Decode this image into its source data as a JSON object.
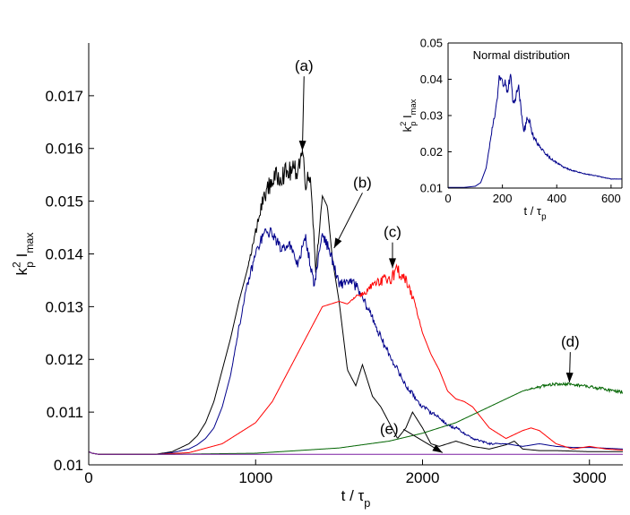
{
  "chart_data": [
    {
      "type": "line",
      "xlabel": "t / τ",
      "xlabel_sub": "p",
      "ylabel_base": "k",
      "ylabel_sup": "2",
      "ylabel_sub1": "p",
      "ylabel_main": "I",
      "ylabel_sub2": "max",
      "xlim": [
        0,
        3200
      ],
      "ylim": [
        0.01,
        0.018
      ],
      "x_ticks": [
        0,
        1000,
        2000,
        3000
      ],
      "x_tick_labels": [
        "0",
        "1000",
        "2000",
        "3000"
      ],
      "y_ticks": [
        0.01,
        0.011,
        0.012,
        0.013,
        0.014,
        0.015,
        0.016,
        0.017
      ],
      "y_tick_labels": [
        "0.01",
        "0.011",
        "0.012",
        "0.013",
        "0.014",
        "0.015",
        "0.016",
        "0.017"
      ],
      "grid": false,
      "series": [
        {
          "name": "(a)",
          "color": "#000000",
          "x": [
            0,
            20,
            60,
            200,
            400,
            500,
            600,
            650,
            700,
            750,
            800,
            850,
            900,
            950,
            1000,
            1050,
            1100,
            1150,
            1200,
            1250,
            1280,
            1300,
            1330,
            1360,
            1400,
            1430,
            1460,
            1500,
            1550,
            1600,
            1640,
            1700,
            1750,
            1800,
            1850,
            1900,
            1940,
            2000,
            2050,
            2100,
            2200,
            2300,
            2400,
            2500,
            2550,
            2600,
            2700,
            2800,
            3000,
            3200
          ],
          "values": [
            0.01025,
            0.01022,
            0.0102,
            0.0102,
            0.0102,
            0.01025,
            0.0104,
            0.01055,
            0.0108,
            0.0112,
            0.0118,
            0.0124,
            0.0131,
            0.0137,
            0.0144,
            0.0151,
            0.0154,
            0.0155,
            0.01555,
            0.0156,
            0.01595,
            0.0154,
            0.01545,
            0.0137,
            0.0151,
            0.0149,
            0.0139,
            0.0131,
            0.0118,
            0.0115,
            0.0119,
            0.0113,
            0.0111,
            0.0108,
            0.0105,
            0.0107,
            0.011,
            0.0107,
            0.0104,
            0.01035,
            0.01045,
            0.01035,
            0.0103,
            0.01038,
            0.01045,
            0.0103,
            0.01027,
            0.01027,
            0.01025,
            0.01025
          ],
          "noise": [
            0,
            0,
            0,
            0,
            0,
            0,
            0,
            0,
            0,
            0,
            0,
            0,
            0,
            0,
            0.0001,
            0.00015,
            0.0002,
            0.0002,
            0.0002,
            0.0002,
            0.0002,
            0.0002,
            0.0001,
            0.0001,
            0,
            0,
            0,
            0,
            0,
            0,
            0,
            0,
            0,
            0,
            0,
            0,
            0,
            0,
            0,
            0,
            0,
            0,
            0,
            0,
            0,
            0,
            0,
            0,
            0,
            0
          ]
        },
        {
          "name": "(b)",
          "color": "#00008b",
          "x": [
            0,
            20,
            60,
            200,
            400,
            500,
            600,
            650,
            700,
            750,
            800,
            850,
            900,
            950,
            1000,
            1050,
            1100,
            1150,
            1200,
            1250,
            1300,
            1350,
            1400,
            1450,
            1500,
            1550,
            1600,
            1650,
            1700,
            1750,
            1800,
            1850,
            1900,
            1950,
            2000,
            2050,
            2100,
            2150,
            2200,
            2300,
            2400,
            2500,
            2600,
            2700,
            2800,
            2900,
            3000,
            3200
          ],
          "values": [
            0.01025,
            0.01022,
            0.0102,
            0.0102,
            0.0102,
            0.01023,
            0.0103,
            0.01038,
            0.0105,
            0.0107,
            0.0111,
            0.0117,
            0.0126,
            0.0134,
            0.014,
            0.0144,
            0.0144,
            0.0141,
            0.0142,
            0.0138,
            0.0143,
            0.0134,
            0.0144,
            0.014,
            0.0134,
            0.0135,
            0.0134,
            0.0131,
            0.0128,
            0.0124,
            0.0121,
            0.0118,
            0.0115,
            0.0113,
            0.0111,
            0.011,
            0.0109,
            0.01075,
            0.0107,
            0.0105,
            0.0104,
            0.0104,
            0.01035,
            0.0104,
            0.01035,
            0.01033,
            0.01033,
            0.0103
          ],
          "noise": [
            0,
            0,
            0,
            0,
            0,
            0,
            0,
            0,
            0,
            0,
            0,
            0,
            5e-05,
            8e-05,
            0.0001,
            0.0001,
            0.0001,
            0.0001,
            0.0001,
            0.0001,
            0.0001,
            0.0001,
            0.0001,
            0.0001,
            0.0001,
            0.0001,
            0.0001,
            8e-05,
            8e-05,
            8e-05,
            6e-05,
            6e-05,
            5e-05,
            5e-05,
            4e-05,
            4e-05,
            3e-05,
            3e-05,
            3e-05,
            2e-05,
            2e-05,
            0,
            0,
            0,
            0,
            0,
            0,
            0
          ]
        },
        {
          "name": "(c)",
          "color": "#ff0000",
          "x": [
            0,
            20,
            60,
            200,
            400,
            600,
            800,
            900,
            1000,
            1100,
            1200,
            1300,
            1400,
            1500,
            1550,
            1600,
            1650,
            1700,
            1750,
            1800,
            1850,
            1900,
            1950,
            2000,
            2050,
            2100,
            2150,
            2200,
            2250,
            2300,
            2400,
            2500,
            2600,
            2650,
            2700,
            2800,
            2900,
            3000,
            3100,
            3200
          ],
          "values": [
            0.01025,
            0.01022,
            0.0102,
            0.0102,
            0.0102,
            0.01023,
            0.0104,
            0.0106,
            0.0108,
            0.0112,
            0.0118,
            0.0124,
            0.013,
            0.0131,
            0.01305,
            0.0132,
            0.01325,
            0.0134,
            0.01345,
            0.01355,
            0.0137,
            0.0135,
            0.0131,
            0.0125,
            0.0121,
            0.0118,
            0.0114,
            0.01125,
            0.0112,
            0.0111,
            0.0107,
            0.0105,
            0.01065,
            0.0107,
            0.01065,
            0.0104,
            0.0103,
            0.01035,
            0.0103,
            0.01028
          ],
          "noise": [
            0,
            0,
            0,
            0,
            0,
            0,
            0,
            0,
            0,
            0,
            0,
            0,
            0,
            0,
            0,
            3e-05,
            5e-05,
            8e-05,
            0.00012,
            0.00015,
            0.00015,
            0.0001,
            5e-05,
            0,
            0,
            0,
            0,
            0,
            0,
            0,
            0,
            0,
            0,
            0,
            0,
            0,
            0,
            0,
            0,
            0
          ]
        },
        {
          "name": "(d)",
          "color": "#006400",
          "x": [
            0,
            20,
            60,
            500,
            1000,
            1500,
            1800,
            2000,
            2200,
            2400,
            2600,
            2700,
            2800,
            2900,
            3000,
            3100,
            3200
          ],
          "values": [
            0.01025,
            0.01022,
            0.0102,
            0.0102,
            0.01022,
            0.01032,
            0.01045,
            0.0106,
            0.0108,
            0.0111,
            0.0114,
            0.01148,
            0.01153,
            0.01153,
            0.01148,
            0.01143,
            0.01138
          ],
          "noise": [
            0,
            0,
            0,
            0,
            0,
            0,
            0,
            0,
            0,
            0,
            0,
            3e-05,
            3e-05,
            3e-05,
            3e-05,
            3e-05,
            3e-05
          ]
        },
        {
          "name": "(e)",
          "color": "#7b1fa2",
          "x": [
            0,
            20,
            60,
            3200
          ],
          "values": [
            0.01025,
            0.01022,
            0.0102,
            0.0102
          ],
          "noise": [
            0,
            0,
            0,
            0
          ]
        }
      ],
      "annotations": [
        {
          "label": "(a)",
          "text_x": 1290,
          "text_y": 0.01747,
          "tip_x": 1280,
          "tip_y": 0.01596
        },
        {
          "label": "(b)",
          "text_x": 1640,
          "text_y": 0.01526,
          "tip_x": 1470,
          "tip_y": 0.01411
        },
        {
          "label": "(c)",
          "text_x": 1820,
          "text_y": 0.01432,
          "tip_x": 1820,
          "tip_y": 0.01373
        },
        {
          "label": "(d)",
          "text_x": 2885,
          "text_y": 0.01224,
          "tip_x": 2880,
          "tip_y": 0.01156
        },
        {
          "label": "(e)",
          "text_x": 1800,
          "text_y": 0.01059,
          "tip_x": 2120,
          "tip_y": 0.01023
        }
      ]
    },
    {
      "type": "line",
      "title": "Normal distribution",
      "xlabel": "t / τ",
      "xlabel_sub": "p",
      "ylabel_base": "k",
      "ylabel_sup": "2",
      "ylabel_sub1": "p",
      "ylabel_main": "I",
      "ylabel_sub2": "max",
      "xlim": [
        0,
        640
      ],
      "ylim": [
        0.01,
        0.05
      ],
      "x_ticks": [
        0,
        200,
        400,
        600
      ],
      "x_tick_labels": [
        "0",
        "200",
        "400",
        "600"
      ],
      "y_ticks": [
        0.01,
        0.02,
        0.03,
        0.04,
        0.05
      ],
      "y_tick_labels": [
        "0.01",
        "0.02",
        "0.03",
        "0.04",
        "0.05"
      ],
      "grid": false,
      "series": [
        {
          "name": "normal",
          "color": "#00008b",
          "x": [
            0,
            60,
            100,
            120,
            140,
            160,
            180,
            190,
            200,
            210,
            220,
            230,
            240,
            250,
            260,
            270,
            280,
            290,
            300,
            310,
            320,
            340,
            360,
            380,
            400,
            420,
            450,
            500,
            550,
            600,
            640
          ],
          "values": [
            0.0102,
            0.0102,
            0.0105,
            0.0115,
            0.0155,
            0.025,
            0.034,
            0.041,
            0.0385,
            0.04,
            0.036,
            0.0425,
            0.033,
            0.035,
            0.038,
            0.03,
            0.026,
            0.0285,
            0.029,
            0.025,
            0.0235,
            0.021,
            0.0195,
            0.018,
            0.017,
            0.016,
            0.015,
            0.014,
            0.0133,
            0.0125,
            0.0125
          ],
          "noise": [
            0,
            0,
            0,
            0,
            0,
            0.0008,
            0.0012,
            0.0015,
            0.0015,
            0.0015,
            0.0015,
            0.0015,
            0.0015,
            0.0015,
            0.0012,
            0.0012,
            0.0012,
            0.0012,
            0.001,
            0.0008,
            0.0006,
            0.0004,
            0.0004,
            0.0003,
            0.0003,
            0.0002,
            0.0002,
            0.0001,
            0.0001,
            0.0001,
            0
          ]
        }
      ]
    }
  ]
}
